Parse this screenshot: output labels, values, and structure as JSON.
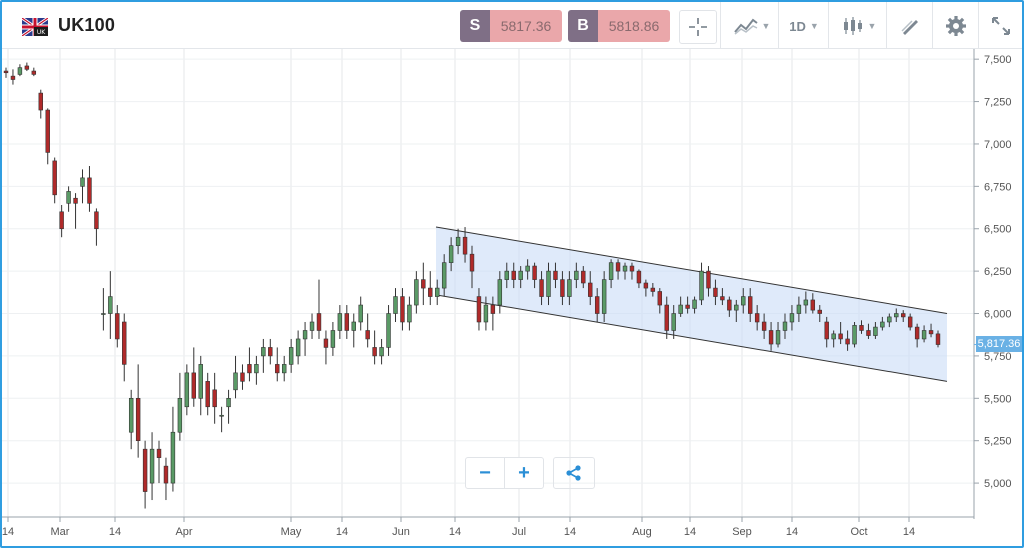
{
  "header": {
    "symbol": "UK100",
    "flag": "uk-flag-icon",
    "sell": {
      "label": "S",
      "price": "5817.36"
    },
    "buy": {
      "label": "B",
      "price": "5818.86"
    },
    "tools": {
      "crosshair": "crosshair-icon",
      "indicators": "indicators-icon",
      "timeframe": "1D",
      "chart_type": "candlestick-icon",
      "drawing": "drawing-tools-icon",
      "settings": "gear-icon",
      "fullscreen": "expand-icon"
    }
  },
  "controls": {
    "zoom_out": "−",
    "zoom_in": "+",
    "share": "share-icon"
  },
  "colors": {
    "bull": "#5a9a66",
    "bear": "#b02a2a",
    "channel": "#c9dcf6",
    "accent": "#2f9de0"
  },
  "chart_data": {
    "type": "candlestick",
    "y_axis": {
      "ticks": [
        "7,500",
        "7,250",
        "7,000",
        "6,750",
        "6,500",
        "6,250",
        "6,000",
        "5,750",
        "5,500",
        "5,250",
        "5,000"
      ],
      "ylim": [
        4800,
        7560
      ]
    },
    "x_axis": {
      "ticks": [
        "14",
        "Mar",
        "14",
        "Apr",
        "May",
        "14",
        "Jun",
        "14",
        "Jul",
        "14",
        "Aug",
        "14",
        "Sep",
        "14",
        "Oct",
        "14"
      ]
    },
    "last_price_label": "5,817.36",
    "channel": {
      "upper": [
        6510,
        6000
      ],
      "lower": [
        6110,
        5600
      ]
    },
    "candles": [
      [
        7430,
        7450,
        7390,
        7420
      ],
      [
        7400,
        7440,
        7350,
        7380
      ],
      [
        7410,
        7470,
        7400,
        7450
      ],
      [
        7460,
        7480,
        7430,
        7440
      ],
      [
        7430,
        7450,
        7400,
        7410
      ],
      [
        7300,
        7320,
        7150,
        7200
      ],
      [
        7200,
        7210,
        6880,
        6950
      ],
      [
        6900,
        6920,
        6650,
        6700
      ],
      [
        6600,
        6640,
        6450,
        6500
      ],
      [
        6650,
        6750,
        6600,
        6720
      ],
      [
        6680,
        6710,
        6500,
        6650
      ],
      [
        6750,
        6850,
        6650,
        6800
      ],
      [
        6800,
        6870,
        6600,
        6650
      ],
      [
        6600,
        6620,
        6400,
        6500
      ],
      [
        6000,
        6150,
        5900,
        6000
      ],
      [
        6000,
        6250,
        5850,
        6100
      ],
      [
        6000,
        6050,
        5800,
        5850
      ],
      [
        5950,
        6000,
        5600,
        5700
      ],
      [
        5300,
        5550,
        5200,
        5500
      ],
      [
        5500,
        5700,
        5150,
        5250
      ],
      [
        5200,
        5250,
        4850,
        4950
      ],
      [
        5000,
        5300,
        4900,
        5200
      ],
      [
        5200,
        5250,
        5000,
        5150
      ],
      [
        5100,
        5150,
        4900,
        5000
      ],
      [
        5000,
        5450,
        4950,
        5300
      ],
      [
        5300,
        5650,
        5250,
        5500
      ],
      [
        5450,
        5700,
        5400,
        5650
      ],
      [
        5650,
        5800,
        5450,
        5500
      ],
      [
        5500,
        5750,
        5400,
        5700
      ],
      [
        5600,
        5650,
        5400,
        5450
      ],
      [
        5550,
        5650,
        5350,
        5450
      ],
      [
        5400,
        5450,
        5300,
        5400
      ],
      [
        5450,
        5550,
        5350,
        5500
      ],
      [
        5550,
        5750,
        5500,
        5650
      ],
      [
        5650,
        5700,
        5550,
        5600
      ],
      [
        5700,
        5800,
        5600,
        5650
      ],
      [
        5650,
        5750,
        5580,
        5700
      ],
      [
        5750,
        5850,
        5650,
        5800
      ],
      [
        5800,
        5850,
        5700,
        5750
      ],
      [
        5700,
        5800,
        5600,
        5650
      ],
      [
        5650,
        5750,
        5600,
        5700
      ],
      [
        5700,
        5850,
        5650,
        5800
      ],
      [
        5750,
        5900,
        5700,
        5850
      ],
      [
        5850,
        5950,
        5750,
        5900
      ],
      [
        5900,
        6000,
        5850,
        5950
      ],
      [
        6000,
        6200,
        5850,
        5900
      ],
      [
        5850,
        5900,
        5700,
        5800
      ],
      [
        5800,
        5950,
        5750,
        5900
      ],
      [
        5900,
        6050,
        5850,
        6000
      ],
      [
        6000,
        6050,
        5850,
        5900
      ],
      [
        5900,
        6000,
        5800,
        5950
      ],
      [
        5950,
        6100,
        5900,
        6050
      ],
      [
        5900,
        6000,
        5800,
        5850
      ],
      [
        5800,
        5900,
        5700,
        5750
      ],
      [
        5750,
        5850,
        5700,
        5800
      ],
      [
        5800,
        6050,
        5750,
        6000
      ],
      [
        6000,
        6150,
        5950,
        6100
      ],
      [
        6100,
        6150,
        5900,
        5950
      ],
      [
        5950,
        6100,
        5900,
        6050
      ],
      [
        6050,
        6250,
        6000,
        6200
      ],
      [
        6200,
        6300,
        6050,
        6150
      ],
      [
        6150,
        6250,
        6050,
        6100
      ],
      [
        6100,
        6200,
        6050,
        6150
      ],
      [
        6150,
        6350,
        6100,
        6300
      ],
      [
        6300,
        6450,
        6250,
        6400
      ],
      [
        6400,
        6500,
        6350,
        6450
      ],
      [
        6450,
        6510,
        6300,
        6350
      ],
      [
        6350,
        6400,
        6150,
        6250
      ],
      [
        6100,
        6150,
        5900,
        5950
      ],
      [
        5950,
        6100,
        5900,
        6050
      ],
      [
        6050,
        6100,
        5900,
        6000
      ],
      [
        6050,
        6250,
        6000,
        6200
      ],
      [
        6200,
        6300,
        6150,
        6250
      ],
      [
        6250,
        6300,
        6150,
        6200
      ],
      [
        6200,
        6280,
        6150,
        6250
      ],
      [
        6250,
        6320,
        6200,
        6280
      ],
      [
        6280,
        6300,
        6150,
        6200
      ],
      [
        6200,
        6250,
        6050,
        6100
      ],
      [
        6100,
        6300,
        6050,
        6250
      ],
      [
        6250,
        6300,
        6150,
        6200
      ],
      [
        6200,
        6250,
        6050,
        6100
      ],
      [
        6100,
        6250,
        6050,
        6200
      ],
      [
        6200,
        6300,
        6150,
        6250
      ],
      [
        6250,
        6280,
        6150,
        6180
      ],
      [
        6180,
        6250,
        6050,
        6100
      ],
      [
        6100,
        6150,
        5950,
        6000
      ],
      [
        6000,
        6250,
        5950,
        6200
      ],
      [
        6200,
        6320,
        6150,
        6300
      ],
      [
        6300,
        6320,
        6200,
        6250
      ],
      [
        6250,
        6300,
        6200,
        6280
      ],
      [
        6280,
        6300,
        6200,
        6250
      ],
      [
        6250,
        6260,
        6150,
        6180
      ],
      [
        6180,
        6200,
        6100,
        6150
      ],
      [
        6150,
        6180,
        6100,
        6130
      ],
      [
        6130,
        6150,
        6000,
        6050
      ],
      [
        6050,
        6100,
        5850,
        5900
      ],
      [
        5900,
        6050,
        5850,
        6000
      ],
      [
        6000,
        6100,
        5980,
        6050
      ],
      [
        6050,
        6100,
        6000,
        6030
      ],
      [
        6030,
        6100,
        6000,
        6080
      ],
      [
        6080,
        6300,
        6050,
        6250
      ],
      [
        6250,
        6280,
        6100,
        6150
      ],
      [
        6150,
        6200,
        6050,
        6100
      ],
      [
        6100,
        6150,
        6050,
        6080
      ],
      [
        6080,
        6100,
        5980,
        6020
      ],
      [
        6020,
        6080,
        5950,
        6050
      ],
      [
        6050,
        6150,
        6000,
        6100
      ],
      [
        6100,
        6150,
        5950,
        6000
      ],
      [
        6000,
        6050,
        5900,
        5950
      ],
      [
        5950,
        6000,
        5850,
        5900
      ],
      [
        5900,
        5950,
        5780,
        5820
      ],
      [
        5820,
        5950,
        5800,
        5900
      ],
      [
        5900,
        6000,
        5850,
        5950
      ],
      [
        5950,
        6050,
        5900,
        6000
      ],
      [
        6000,
        6100,
        5950,
        6050
      ],
      [
        6050,
        6130,
        6000,
        6080
      ],
      [
        6080,
        6120,
        6000,
        6020
      ],
      [
        6020,
        6050,
        5950,
        6000
      ],
      [
        5950,
        5980,
        5800,
        5850
      ],
      [
        5850,
        5900,
        5800,
        5880
      ],
      [
        5880,
        5950,
        5820,
        5850
      ],
      [
        5850,
        5900,
        5780,
        5820
      ],
      [
        5820,
        5950,
        5800,
        5930
      ],
      [
        5930,
        5960,
        5880,
        5900
      ],
      [
        5900,
        5940,
        5850,
        5870
      ],
      [
        5870,
        5950,
        5850,
        5920
      ],
      [
        5920,
        5980,
        5900,
        5950
      ],
      [
        5950,
        6000,
        5920,
        5980
      ],
      [
        5980,
        6030,
        5950,
        6000
      ],
      [
        6000,
        6020,
        5950,
        5980
      ],
      [
        5980,
        6000,
        5900,
        5920
      ],
      [
        5920,
        5940,
        5800,
        5850
      ],
      [
        5850,
        5930,
        5830,
        5900
      ],
      [
        5900,
        5940,
        5860,
        5880
      ],
      [
        5880,
        5900,
        5800,
        5817
      ]
    ]
  }
}
